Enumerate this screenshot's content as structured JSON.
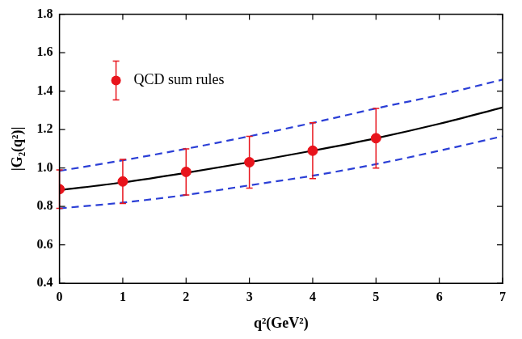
{
  "chart_data": {
    "type": "scatter",
    "x_label": "q²(GeV²)",
    "y_label": "|G₂(q²)|",
    "xlim": [
      0,
      7
    ],
    "xticks": [
      0,
      1,
      2,
      3,
      4,
      5,
      6,
      7
    ],
    "ylim": [
      0.4,
      1.8
    ],
    "yticks": [
      0.4,
      0.6,
      0.8,
      {
        "value": 1,
        "label": "1.0"
      },
      1.2,
      1.4,
      1.6,
      1.8
    ],
    "grid": false,
    "legend": "upper left",
    "series": [
      {
        "type": "line",
        "color": "#000000",
        "line_style": "solid",
        "marker": "none",
        "x": [
          0,
          1,
          2,
          3,
          4,
          5,
          6,
          7
        ],
        "values": [
          0.885,
          0.925,
          0.975,
          1.03,
          1.09,
          1.155,
          1.23,
          1.315
        ]
      },
      {
        "type": "line",
        "color": "#2b3fd6",
        "line_style": "dashed",
        "marker": "none",
        "x": [
          0,
          1,
          2,
          3,
          4,
          5,
          6,
          7
        ],
        "values": [
          0.985,
          1.04,
          1.1,
          1.165,
          1.235,
          1.31,
          1.38,
          1.46
        ]
      },
      {
        "type": "line",
        "color": "#2b3fd6",
        "line_style": "dashed",
        "marker": "none",
        "x": [
          0,
          1,
          2,
          3,
          4,
          5,
          6,
          7
        ],
        "values": [
          0.79,
          0.82,
          0.86,
          0.91,
          0.96,
          1.02,
          1.09,
          1.165
        ]
      },
      {
        "name": "QCD sum rules",
        "type": "scatter",
        "color": "#e8141c",
        "marker": "circle",
        "x": [
          0,
          1,
          2,
          3,
          4,
          5
        ],
        "values": [
          0.89,
          0.93,
          0.98,
          1.03,
          1.09,
          1.155
        ],
        "errors": [
          0.1,
          0.115,
          0.12,
          0.135,
          0.145,
          0.155
        ]
      }
    ]
  }
}
